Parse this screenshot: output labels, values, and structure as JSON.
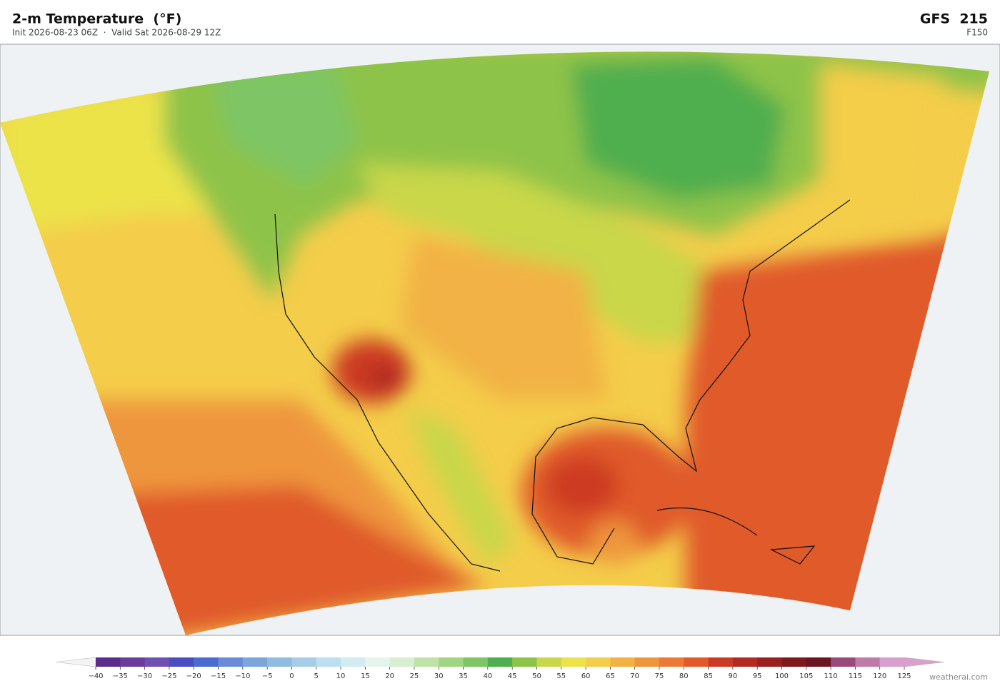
{
  "header": {
    "title": "2-m Temperature  (°F)",
    "subtitle": "Init 2026-08-23 06Z  ·  Valid Sat 2026-08-29 12Z",
    "model": "GFS  215",
    "forecast_hour": "F150"
  },
  "colorbar": {
    "ticks": [
      {
        "value": -40,
        "label": "−40"
      },
      {
        "value": -35,
        "label": "−35"
      },
      {
        "value": -30,
        "label": "−30"
      },
      {
        "value": -25,
        "label": "−25"
      },
      {
        "value": -20,
        "label": "−20"
      },
      {
        "value": -15,
        "label": "−15"
      },
      {
        "value": -10,
        "label": "−10"
      },
      {
        "value": -5,
        "label": "−5"
      },
      0,
      5,
      10,
      15,
      20,
      25,
      30,
      35,
      40,
      45,
      50,
      55,
      60,
      65,
      70,
      75,
      80,
      85,
      90,
      95,
      100,
      105,
      110,
      115,
      120,
      125
    ],
    "colors": [
      "#5a2d8c",
      "#6a3d9a",
      "#7050b0",
      "#4a4ec0",
      "#4a6cd0",
      "#6a8cd8",
      "#7aa6dc",
      "#8fbce0",
      "#a6cce6",
      "#bcdff0",
      "#d2ecf2",
      "#e6f4ee",
      "#d8eed0",
      "#bfe3a6",
      "#a0d681",
      "#7dc565",
      "#4fae4d",
      "#8ec34a",
      "#c9d74a",
      "#ece34a",
      "#f4cd4a",
      "#f2b244",
      "#ee963c",
      "#ea7a36",
      "#e05a2a",
      "#cc3a24",
      "#b22a22",
      "#98201e",
      "#7e1a1a",
      "#6a1620",
      "#9a4a7a",
      "#c07aaa",
      "#d8a0cc"
    ],
    "under_color": "#f4f4f4",
    "over_color": "#d8a0cc"
  },
  "footer": {
    "credit": "weatherai.com"
  }
}
